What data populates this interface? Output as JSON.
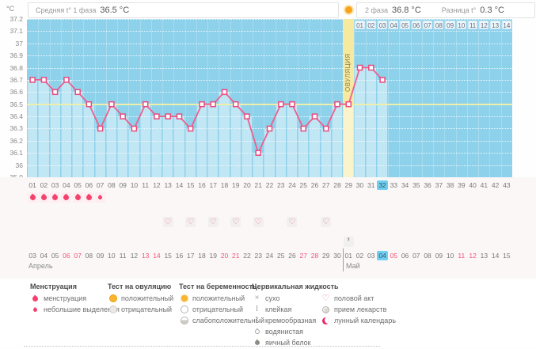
{
  "header": {
    "unit_label": "°C",
    "phase1_label": "Средняя t° 1 фаза",
    "phase1_value": "36.5 °C",
    "phase2_label": "2 фаза",
    "phase2_value": "36.8 °C",
    "diff_label": "Разница t°",
    "diff_value": "0.3 °C"
  },
  "chart_data": {
    "type": "line",
    "title": "Basal body temperature cycle chart",
    "ylabel": "°C",
    "ylim": [
      35.9,
      37.2
    ],
    "yticks": [
      "37.2",
      "37.1",
      "37",
      "36.9",
      "36.8",
      "36.7",
      "36.6",
      "36.5",
      "36.4",
      "36.3",
      "36.2",
      "36.1",
      "36",
      "35.9"
    ],
    "x_days_total": 43,
    "temps_by_day": [
      36.7,
      36.7,
      36.6,
      36.7,
      36.6,
      36.5,
      36.3,
      36.5,
      36.4,
      36.3,
      36.5,
      36.4,
      36.4,
      36.4,
      36.3,
      36.5,
      36.5,
      36.6,
      36.5,
      36.4,
      36.1,
      36.3,
      36.5,
      36.5,
      36.3,
      36.4,
      36.3,
      36.5,
      36.5,
      36.8,
      36.8,
      36.7
    ],
    "coverline": 36.5,
    "ovulation_day": 29,
    "ovulation_label": "ОВУЛЯЦИЯ",
    "dpo_start_day": 30,
    "dpo_labels": [
      "01",
      "02",
      "03",
      "04",
      "05",
      "06",
      "07",
      "08",
      "09",
      "10",
      "11",
      "12",
      "13",
      "14"
    ],
    "current_day": "32",
    "grid": true,
    "legend_position": "bottom"
  },
  "rows": {
    "day_numbers": [
      "01",
      "02",
      "03",
      "04",
      "05",
      "06",
      "07",
      "08",
      "09",
      "10",
      "11",
      "12",
      "13",
      "14",
      "15",
      "16",
      "17",
      "18",
      "19",
      "20",
      "21",
      "22",
      "23",
      "24",
      "25",
      "26",
      "27",
      "28",
      "29",
      "30",
      "31",
      "32",
      "33",
      "34",
      "35",
      "36",
      "37",
      "38",
      "39",
      "40",
      "41",
      "42",
      "43"
    ],
    "menstruation_days": [
      1,
      2,
      3,
      4,
      5,
      6
    ],
    "spotting_days": [
      7
    ],
    "intercourse_days": [
      13,
      15,
      17,
      19,
      21,
      24,
      27
    ],
    "cervical_fluid": [
      {
        "day": 29,
        "type": "кремообразная",
        "icon": "comma"
      }
    ],
    "dates": {
      "april": {
        "label": "Апрель",
        "start_day": 1,
        "values": [
          "03",
          "04",
          "05",
          "06",
          "07",
          "08",
          "09",
          "10",
          "11",
          "12",
          "13",
          "14",
          "15",
          "16",
          "17",
          "18",
          "19",
          "20",
          "21",
          "22",
          "23",
          "24",
          "25",
          "26",
          "27",
          "28",
          "29",
          "30"
        ],
        "red": [
          "06",
          "07",
          "13",
          "14",
          "20",
          "21",
          "27",
          "28"
        ]
      },
      "may": {
        "label": "Май",
        "start_day": 29,
        "values": [
          "01",
          "02",
          "03",
          "04",
          "05",
          "06",
          "07",
          "08",
          "09",
          "10",
          "11",
          "12",
          "13",
          "14",
          "15"
        ],
        "red": [
          "05",
          "11",
          "12"
        ],
        "highlight": "04"
      }
    }
  },
  "legend": {
    "columns": [
      {
        "title": "Менструация",
        "items": [
          {
            "icon": "drop",
            "label": "менструация"
          },
          {
            "icon": "drop-small",
            "label": "небольшие выделения"
          }
        ]
      },
      {
        "title": "Тест на овуляцию",
        "items": [
          {
            "icon": "circle-orange-dotted",
            "label": "положительный"
          },
          {
            "icon": "circle-gray-dotted",
            "label": "отрицательный"
          }
        ]
      },
      {
        "title": "Тест на беременность",
        "items": [
          {
            "icon": "circle-orange",
            "label": "положительный"
          },
          {
            "icon": "circle-white",
            "label": "отрицательный"
          },
          {
            "icon": "circle-half",
            "label": "слабоположительный"
          }
        ]
      },
      {
        "title": "Цервикальная жидкость",
        "items": [
          {
            "icon": "x-mark",
            "label": "сухо"
          },
          {
            "icon": "sticky",
            "label": "клейкая"
          },
          {
            "icon": "comma",
            "label": "кремообразная"
          },
          {
            "icon": "drop-outline",
            "label": "водянистая"
          },
          {
            "icon": "drop-dark",
            "label": "яичный белок"
          }
        ]
      },
      {
        "title": "",
        "items": [
          {
            "icon": "heart",
            "label": "половой акт"
          },
          {
            "icon": "pill",
            "label": "прием лекарств"
          },
          {
            "icon": "moon",
            "label": "лунный календарь"
          }
        ]
      }
    ]
  },
  "colors": {
    "chart_blue": "#8ed1eb",
    "area_fill": "#c6e8f6",
    "ovulation_band": "#f6e9a0",
    "coverline": "#edf0a8",
    "line_pink": "#ee5f8d",
    "menstruation_red": "#f5426c",
    "today_highlight": "#6fcef2",
    "weekend_red": "#f0557c",
    "test_orange": "#f9b52c"
  }
}
